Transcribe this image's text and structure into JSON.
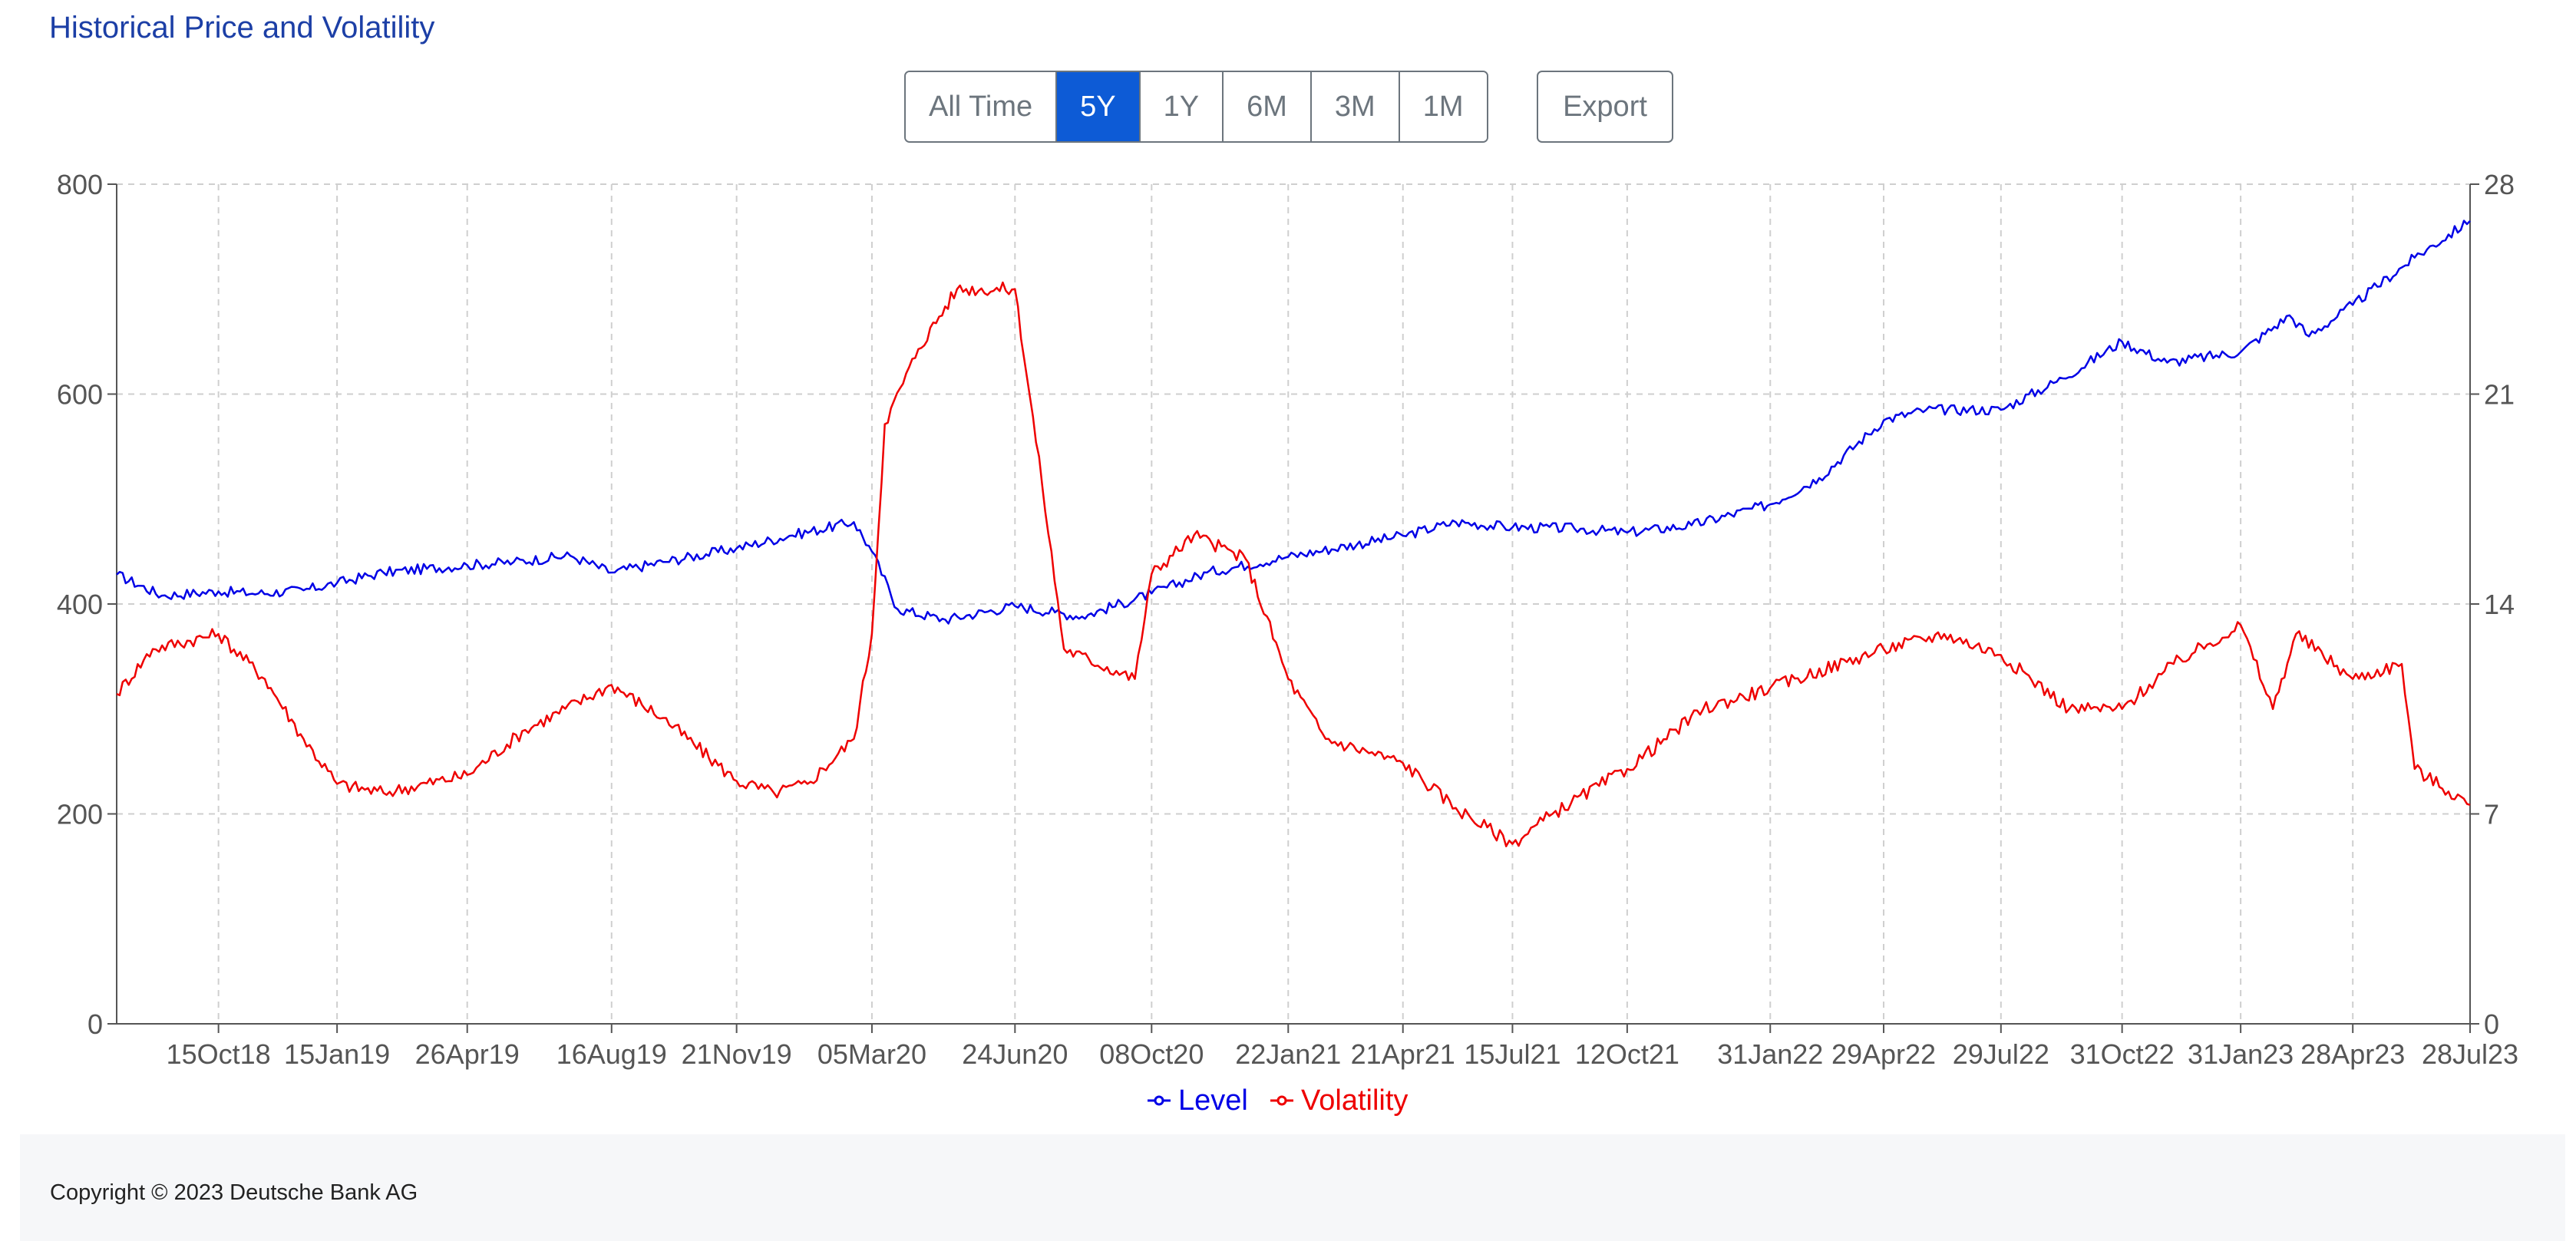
{
  "page": {
    "title": "Historical Price and Volatility"
  },
  "toolbar": {
    "ranges": [
      "All Time",
      "5Y",
      "1Y",
      "6M",
      "3M",
      "1M"
    ],
    "active_range": "5Y",
    "export_label": "Export"
  },
  "colors": {
    "level": "#0000e6",
    "volatility": "#ee0000",
    "active_button": "#0d5bd6",
    "title": "#1c3fa6"
  },
  "chart_data": {
    "type": "line",
    "title": "",
    "xlabel": "",
    "ylabel": "",
    "x_tick_labels": [
      "15Oct18",
      "15Jan19",
      "26Apr19",
      "16Aug19",
      "21Nov19",
      "05Mar20",
      "24Jun20",
      "08Oct20",
      "22Jan21",
      "21Apr21",
      "15Jul21",
      "12Oct21",
      "31Jan22",
      "29Apr22",
      "29Jul22",
      "31Oct22",
      "31Jan23",
      "28Apr23",
      "28Jul23"
    ],
    "x_range": [
      "2018-07-28",
      "2023-07-28"
    ],
    "y_left": {
      "range": [
        0,
        800
      ],
      "ticks": [
        "0",
        "200",
        "400",
        "600",
        "800"
      ]
    },
    "y_right": {
      "range": [
        0,
        28
      ],
      "ticks": [
        "0",
        "7",
        "14",
        "21",
        "28"
      ]
    },
    "grid": true,
    "legend_position": "bottom-center",
    "series": [
      {
        "name": "Level",
        "axis": "left",
        "points": [
          [
            "2018-07-28",
            428
          ],
          [
            "2018-09-01",
            408
          ],
          [
            "2018-10-15",
            412
          ],
          [
            "2018-11-15",
            410
          ],
          [
            "2018-12-20",
            413
          ],
          [
            "2019-01-15",
            420
          ],
          [
            "2019-02-20",
            430
          ],
          [
            "2019-04-26",
            437
          ],
          [
            "2019-06-01",
            440
          ],
          [
            "2019-07-15",
            446
          ],
          [
            "2019-08-16",
            430
          ],
          [
            "2019-09-25",
            440
          ],
          [
            "2019-11-21",
            453
          ],
          [
            "2020-01-01",
            465
          ],
          [
            "2020-02-20",
            478
          ],
          [
            "2020-03-05",
            450
          ],
          [
            "2020-03-25",
            395
          ],
          [
            "2020-05-01",
            385
          ],
          [
            "2020-06-24",
            398
          ],
          [
            "2020-07-25",
            392
          ],
          [
            "2020-08-15",
            388
          ],
          [
            "2020-10-08",
            410
          ],
          [
            "2020-11-20",
            430
          ],
          [
            "2021-01-22",
            445
          ],
          [
            "2021-04-21",
            465
          ],
          [
            "2021-06-01",
            478
          ],
          [
            "2021-07-15",
            473
          ],
          [
            "2021-09-01",
            472
          ],
          [
            "2021-10-12",
            468
          ],
          [
            "2021-12-01",
            475
          ],
          [
            "2022-01-31",
            495
          ],
          [
            "2022-03-10",
            520
          ],
          [
            "2022-04-29",
            575
          ],
          [
            "2022-06-01",
            585
          ],
          [
            "2022-07-29",
            585
          ],
          [
            "2022-09-15",
            615
          ],
          [
            "2022-10-31",
            650
          ],
          [
            "2022-12-05",
            630
          ],
          [
            "2023-01-31",
            640
          ],
          [
            "2023-03-10",
            675
          ],
          [
            "2023-03-25",
            655
          ],
          [
            "2023-04-28",
            685
          ],
          [
            "2023-06-15",
            730
          ],
          [
            "2023-07-28",
            765
          ]
        ]
      },
      {
        "name": "Volatility",
        "axis": "right",
        "points": [
          [
            "2018-07-28",
            11.0
          ],
          [
            "2018-08-25",
            12.5
          ],
          [
            "2018-10-15",
            13.0
          ],
          [
            "2018-11-20",
            11.5
          ],
          [
            "2018-12-20",
            9.5
          ],
          [
            "2019-01-15",
            8.0
          ],
          [
            "2019-02-20",
            7.7
          ],
          [
            "2019-04-26",
            8.3
          ],
          [
            "2019-06-10",
            9.8
          ],
          [
            "2019-08-16",
            11.3
          ],
          [
            "2019-09-25",
            10.2
          ],
          [
            "2019-11-21",
            8.1
          ],
          [
            "2019-12-20",
            7.7
          ],
          [
            "2020-01-15",
            8.0
          ],
          [
            "2020-02-20",
            9.5
          ],
          [
            "2020-03-05",
            13.0
          ],
          [
            "2020-03-15",
            20.0
          ],
          [
            "2020-04-10",
            22.5
          ],
          [
            "2020-05-10",
            24.5
          ],
          [
            "2020-06-24",
            24.5
          ],
          [
            "2020-07-15",
            18.0
          ],
          [
            "2020-08-01",
            12.5
          ],
          [
            "2020-09-25",
            11.5
          ],
          [
            "2020-10-08",
            15.0
          ],
          [
            "2020-11-10",
            16.3
          ],
          [
            "2020-12-20",
            15.5
          ],
          [
            "2021-01-22",
            11.5
          ],
          [
            "2021-02-20",
            9.5
          ],
          [
            "2021-04-21",
            8.7
          ],
          [
            "2021-06-01",
            7.2
          ],
          [
            "2021-07-15",
            6.0
          ],
          [
            "2021-08-15",
            7.0
          ],
          [
            "2021-10-12",
            8.5
          ],
          [
            "2021-12-10",
            10.5
          ],
          [
            "2022-01-31",
            11.2
          ],
          [
            "2022-04-29",
            12.5
          ],
          [
            "2022-06-15",
            13.0
          ],
          [
            "2022-07-29",
            12.3
          ],
          [
            "2022-09-20",
            10.5
          ],
          [
            "2022-10-31",
            10.5
          ],
          [
            "2022-12-10",
            12.0
          ],
          [
            "2023-01-31",
            13.3
          ],
          [
            "2023-02-25",
            10.5
          ],
          [
            "2023-03-15",
            13.0
          ],
          [
            "2023-04-28",
            11.5
          ],
          [
            "2023-06-05",
            12.0
          ],
          [
            "2023-06-15",
            8.5
          ],
          [
            "2023-07-28",
            7.3
          ]
        ]
      }
    ]
  },
  "footer": {
    "copyright": "Copyright © 2023 Deutsche Bank AG"
  }
}
